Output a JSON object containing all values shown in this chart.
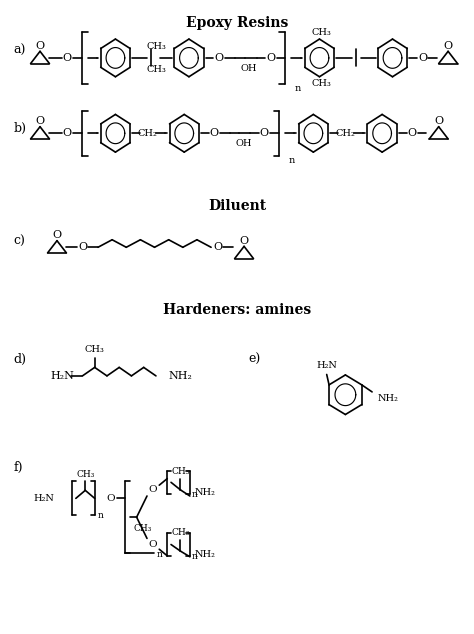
{
  "title_epoxy": "Epoxy Resins",
  "title_diluent": "Diluent",
  "title_hardeners": "Hardeners: amines",
  "label_a": "a)",
  "label_b": "b)",
  "label_c": "c)",
  "label_d": "d)",
  "label_e": "e)",
  "label_f": "f)",
  "bg_color": "#ffffff",
  "line_color": "#000000",
  "line_width": 1.2,
  "font_size": 9,
  "title_font_size": 10
}
